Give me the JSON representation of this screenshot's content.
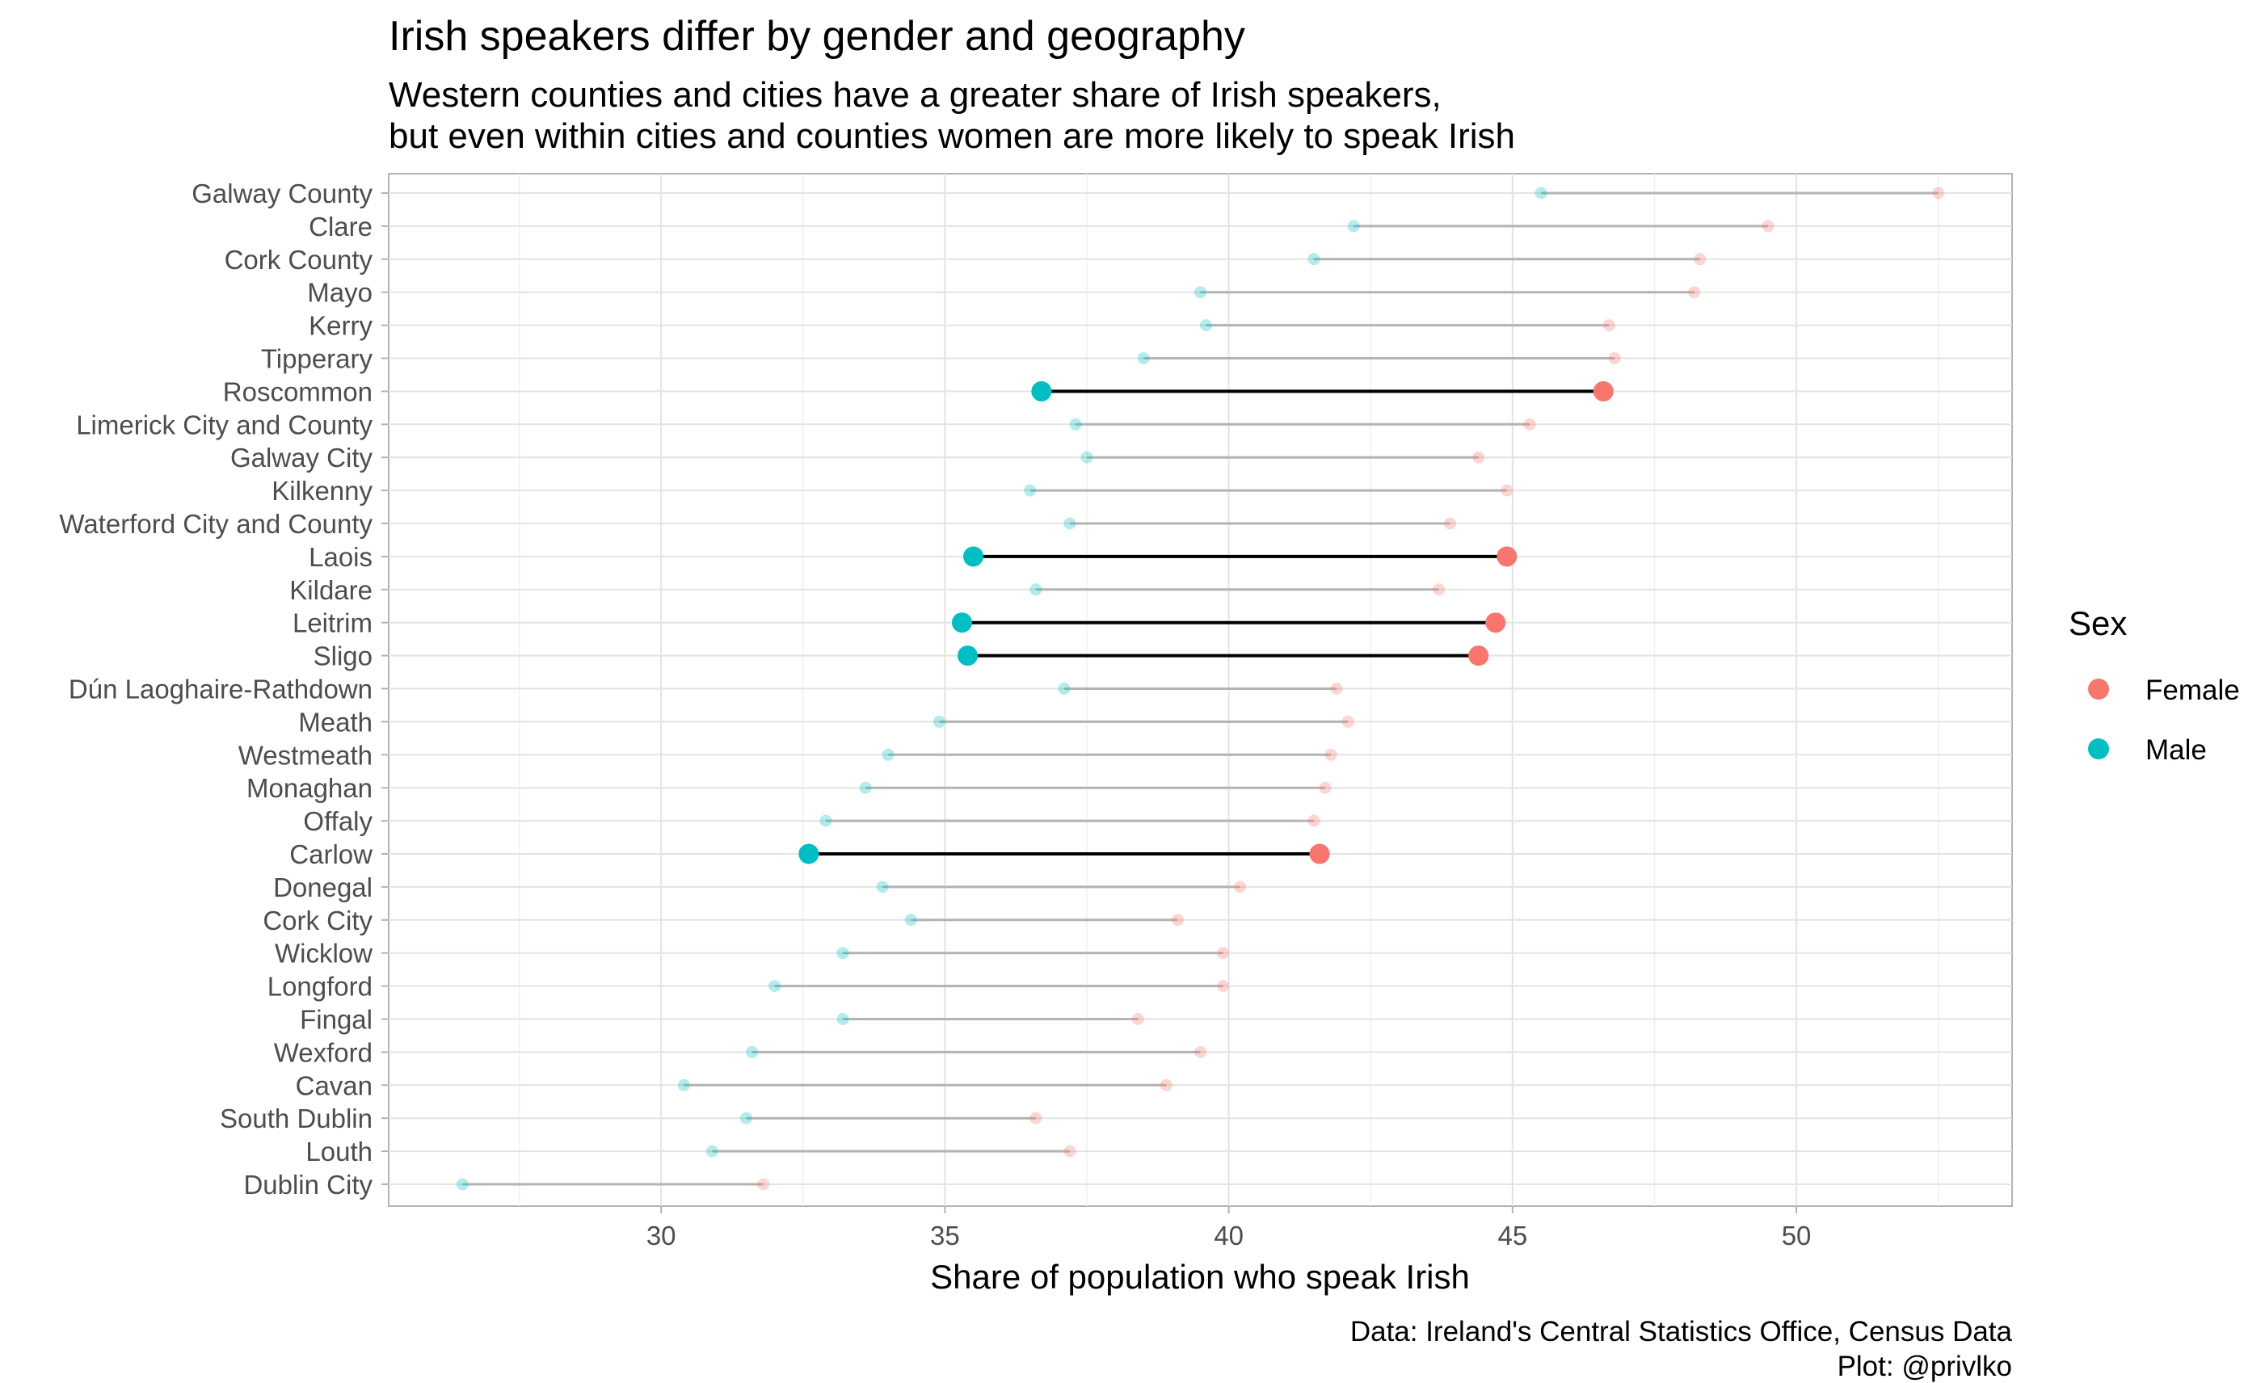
{
  "chart_data": {
    "type": "dumbbell",
    "title": "Irish speakers differ by gender and geography",
    "subtitle": [
      "Western counties and cities have a greater share of Irish speakers,",
      "but even within cities and counties women are more likely to speak Irish"
    ],
    "xlabel": "Share of population who speak Irish",
    "ylabel": "",
    "xlim": [
      25.2,
      53.8
    ],
    "xticks": [
      30,
      35,
      40,
      45,
      50
    ],
    "grid": true,
    "caption": [
      "Data: Ireland's Central Statistics Office, Census Data",
      "Plot: @privlko"
    ],
    "legend": {
      "title": "Sex",
      "position": "right",
      "entries": [
        {
          "label": "Female",
          "color": "#F8766D"
        },
        {
          "label": "Male",
          "color": "#00BFC4"
        }
      ]
    },
    "colors": {
      "female": "#F8766D",
      "male": "#00BFC4",
      "highlight_line": "#000000",
      "faded_line": "#b3b3b3"
    },
    "categories": [
      "Galway County",
      "Clare",
      "Cork County",
      "Mayo",
      "Kerry",
      "Tipperary",
      "Roscommon",
      "Limerick City and County",
      "Galway City",
      "Kilkenny",
      "Waterford City and County",
      "Laois",
      "Kildare",
      "Leitrim",
      "Sligo",
      "Dún Laoghaire-Rathdown",
      "Meath",
      "Westmeath",
      "Monaghan",
      "Offaly",
      "Carlow",
      "Donegal",
      "Cork City",
      "Wicklow",
      "Longford",
      "Fingal",
      "Wexford",
      "Cavan",
      "South Dublin",
      "Louth",
      "Dublin City"
    ],
    "series": [
      {
        "name": "Female",
        "values": [
          52.5,
          49.5,
          48.3,
          48.2,
          46.7,
          46.8,
          46.6,
          45.3,
          44.4,
          44.9,
          43.9,
          44.9,
          43.7,
          44.7,
          44.4,
          41.9,
          42.1,
          41.8,
          41.7,
          41.5,
          41.6,
          40.2,
          39.1,
          39.9,
          39.9,
          38.4,
          39.5,
          38.9,
          36.6,
          37.2,
          31.8
        ]
      },
      {
        "name": "Male",
        "values": [
          45.5,
          42.2,
          41.5,
          39.5,
          39.6,
          38.5,
          36.7,
          37.3,
          37.5,
          36.5,
          37.2,
          35.5,
          36.6,
          35.3,
          35.4,
          37.1,
          34.9,
          34.0,
          33.6,
          32.9,
          32.6,
          33.9,
          34.4,
          33.2,
          32.0,
          33.2,
          31.6,
          30.4,
          31.5,
          30.9,
          26.5
        ]
      }
    ],
    "highlighted": [
      "Roscommon",
      "Laois",
      "Leitrim",
      "Sligo",
      "Carlow"
    ]
  }
}
